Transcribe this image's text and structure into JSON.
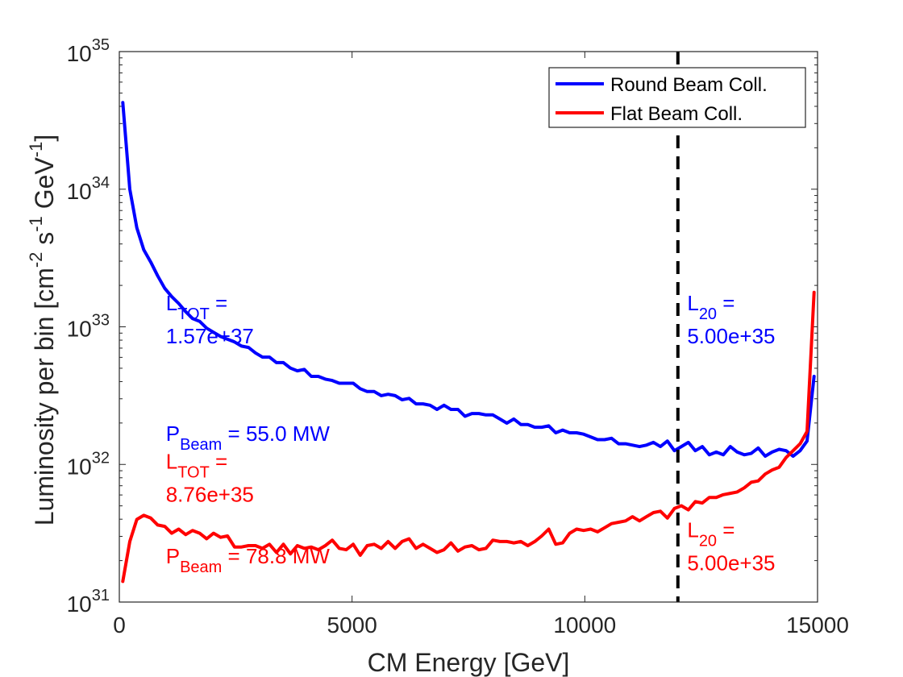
{
  "chart_data": {
    "type": "line",
    "title": "",
    "xlabel": "CM Energy [GeV]",
    "ylabel": {
      "main": "Luminosity per bin [cm",
      "exp1": "-2",
      "mid1": " s",
      "exp2": "-1",
      "mid2": " GeV",
      "exp3": "-1",
      "end": "]"
    },
    "xlim": [
      0,
      15000
    ],
    "ylim_log10": [
      31,
      35
    ],
    "yscale": "log",
    "xticks": [
      {
        "value": 0,
        "label": "0"
      },
      {
        "value": 5000,
        "label": "5000"
      },
      {
        "value": 10000,
        "label": "10000"
      },
      {
        "value": 15000,
        "label": "15000"
      }
    ],
    "yticks": [
      {
        "exp": 31,
        "base": "10",
        "sup": "31"
      },
      {
        "exp": 32,
        "base": "10",
        "sup": "32"
      },
      {
        "exp": 33,
        "base": "10",
        "sup": "33"
      },
      {
        "exp": 34,
        "base": "10",
        "sup": "34"
      },
      {
        "exp": 35,
        "base": "10",
        "sup": "35"
      }
    ],
    "legend_position": "top-right",
    "vline": {
      "x": 12000,
      "style": "dashed",
      "color": "#000000"
    },
    "series": [
      {
        "name": "Round Beam Coll.",
        "color": "#0000ff",
        "x": [
          75,
          225,
          375,
          525,
          675,
          825,
          975,
          1125,
          1275,
          1425,
          1575,
          1725,
          1875,
          2025,
          2175,
          2325,
          2475,
          2625,
          2775,
          2925,
          3075,
          3225,
          3375,
          3525,
          3675,
          3825,
          3975,
          4125,
          4275,
          4425,
          4575,
          4725,
          4875,
          5025,
          5175,
          5325,
          5475,
          5625,
          5775,
          5925,
          6075,
          6225,
          6375,
          6525,
          6675,
          6825,
          6975,
          7125,
          7275,
          7425,
          7575,
          7725,
          7875,
          8025,
          8175,
          8325,
          8475,
          8625,
          8775,
          8925,
          9075,
          9225,
          9375,
          9525,
          9675,
          9825,
          9975,
          10125,
          10275,
          10425,
          10575,
          10725,
          10875,
          11025,
          11175,
          11325,
          11475,
          11625,
          11775,
          11925,
          12075,
          12225,
          12375,
          12525,
          12675,
          12825,
          12975,
          13125,
          13275,
          13425,
          13575,
          13725,
          13875,
          14025,
          14175,
          14325,
          14475,
          14625,
          14775,
          14925
        ],
        "y_log10": [
          34.63,
          34.0,
          33.72,
          33.56,
          33.47,
          33.37,
          33.28,
          33.22,
          33.17,
          33.11,
          33.06,
          33.04,
          32.99,
          32.96,
          32.93,
          32.91,
          32.89,
          32.86,
          32.85,
          32.81,
          32.78,
          32.78,
          32.74,
          32.74,
          32.7,
          32.68,
          32.69,
          32.64,
          32.64,
          32.62,
          32.61,
          32.59,
          32.59,
          32.59,
          32.55,
          32.53,
          32.53,
          32.5,
          32.51,
          32.5,
          32.47,
          32.48,
          32.44,
          32.44,
          32.43,
          32.4,
          32.43,
          32.4,
          32.4,
          32.35,
          32.37,
          32.37,
          32.36,
          32.36,
          32.33,
          32.3,
          32.33,
          32.29,
          32.29,
          32.27,
          32.27,
          32.28,
          32.23,
          32.25,
          32.23,
          32.23,
          32.22,
          32.2,
          32.18,
          32.18,
          32.19,
          32.15,
          32.15,
          32.14,
          32.13,
          32.14,
          32.16,
          32.13,
          32.17,
          32.1,
          32.13,
          32.16,
          32.1,
          32.13,
          32.07,
          32.09,
          32.07,
          32.13,
          32.09,
          32.07,
          32.08,
          32.12,
          32.06,
          32.09,
          32.11,
          32.1,
          32.06,
          32.1,
          32.17,
          32.64
        ],
        "annotations": [
          {
            "text": "L",
            "sub": "TOT",
            "suffix": " =",
            "x": 1000,
            "y_log10": 33.12
          },
          {
            "text": " 1.57e+37",
            "x": 1000,
            "y_log10": 32.88
          },
          {
            "text": "P",
            "sub": "Beam",
            "suffix": " = 55.0 MW",
            "x": 1000,
            "y_log10": 32.17
          },
          {
            "text": "L",
            "sub": "20",
            "suffix": " =",
            "x": 12200,
            "y_log10": 33.12
          },
          {
            "text": " 5.00e+35",
            "x": 12200,
            "y_log10": 32.88
          }
        ]
      },
      {
        "name": "Flat Beam Coll.",
        "color": "#ff0000",
        "x": [
          75,
          225,
          375,
          525,
          675,
          825,
          975,
          1125,
          1275,
          1425,
          1575,
          1725,
          1875,
          2025,
          2175,
          2325,
          2475,
          2625,
          2775,
          2925,
          3075,
          3225,
          3375,
          3525,
          3675,
          3825,
          3975,
          4125,
          4275,
          4425,
          4575,
          4725,
          4875,
          5025,
          5175,
          5325,
          5475,
          5625,
          5775,
          5925,
          6075,
          6225,
          6375,
          6525,
          6675,
          6825,
          6975,
          7125,
          7275,
          7425,
          7575,
          7725,
          7875,
          8025,
          8175,
          8325,
          8475,
          8625,
          8775,
          8925,
          9075,
          9225,
          9375,
          9525,
          9675,
          9825,
          9975,
          10125,
          10275,
          10425,
          10575,
          10725,
          10875,
          11025,
          11175,
          11325,
          11475,
          11625,
          11775,
          11925,
          12075,
          12225,
          12375,
          12525,
          12675,
          12825,
          12975,
          13125,
          13275,
          13425,
          13575,
          13725,
          13875,
          14025,
          14175,
          14325,
          14475,
          14625,
          14775,
          14925
        ],
        "y_log10": [
          31.15,
          31.44,
          31.6,
          31.63,
          31.61,
          31.56,
          31.55,
          31.5,
          31.53,
          31.49,
          31.52,
          31.5,
          31.46,
          31.5,
          31.47,
          31.48,
          31.4,
          31.4,
          31.41,
          31.41,
          31.39,
          31.42,
          31.36,
          31.42,
          31.35,
          31.41,
          31.39,
          31.4,
          31.38,
          31.41,
          31.45,
          31.39,
          31.38,
          31.42,
          31.34,
          31.41,
          31.42,
          31.39,
          31.44,
          31.39,
          31.44,
          31.46,
          31.39,
          31.42,
          31.39,
          31.36,
          31.38,
          31.43,
          31.37,
          31.4,
          31.41,
          31.38,
          31.39,
          31.45,
          31.44,
          31.44,
          31.43,
          31.44,
          31.41,
          31.44,
          31.48,
          31.53,
          31.42,
          31.43,
          31.5,
          31.53,
          31.52,
          31.53,
          31.51,
          31.54,
          31.57,
          31.58,
          31.59,
          31.62,
          31.59,
          31.62,
          31.65,
          31.66,
          31.61,
          31.68,
          31.7,
          31.67,
          31.73,
          31.72,
          31.76,
          31.76,
          31.78,
          31.79,
          31.8,
          31.83,
          31.87,
          31.88,
          31.93,
          31.96,
          31.98,
          32.05,
          32.1,
          32.15,
          32.24,
          33.25
        ],
        "annotations": [
          {
            "text": "L",
            "sub": "TOT",
            "suffix": " =",
            "x": 1000,
            "y_log10": 31.97
          },
          {
            "text": " 8.76e+35",
            "x": 1000,
            "y_log10": 31.73
          },
          {
            "text": "P",
            "sub": "Beam",
            "suffix": " = 78.8 MW",
            "x": 1000,
            "y_log10": 31.28
          },
          {
            "text": "L",
            "sub": "20",
            "suffix": " =",
            "x": 12200,
            "y_log10": 31.47
          },
          {
            "text": " 5.00e+35",
            "x": 12200,
            "y_log10": 31.23
          }
        ]
      }
    ]
  }
}
